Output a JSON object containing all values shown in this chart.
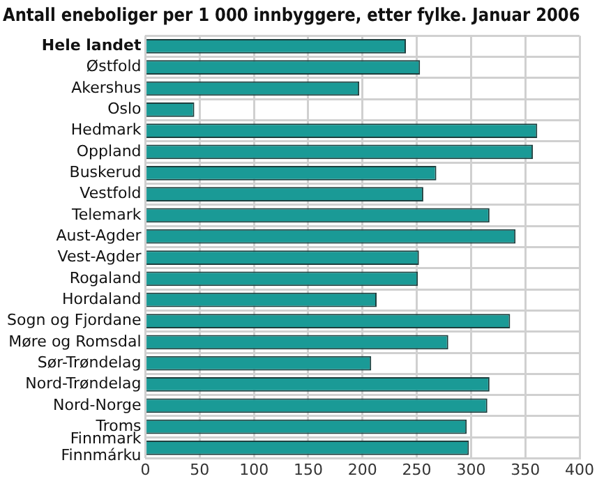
{
  "chart_data": {
    "type": "bar",
    "orientation": "horizontal",
    "title": "Antall eneboliger per 1 000 innbyggere, etter fylke. Januar 2006",
    "categories": [
      "Hele landet",
      "Østfold",
      "Akershus",
      "Oslo",
      "Hedmark",
      "Oppland",
      "Buskerud",
      "Vestfold",
      "Telemark",
      "Aust-Agder",
      "Vest-Agder",
      "Rogaland",
      "Hordaland",
      "Sogn og Fjordane",
      "Møre og Romsdal",
      "Sør-Trøndelag",
      "Nord-Trøndelag",
      "Nord-Norge",
      "Troms",
      "Finnmark\nFinnmárku"
    ],
    "values": [
      240,
      253,
      197,
      45,
      361,
      357,
      268,
      256,
      317,
      341,
      252,
      251,
      213,
      336,
      279,
      208,
      317,
      315,
      296,
      298
    ],
    "color": "#1a9a96",
    "xlim": [
      0,
      400
    ],
    "xticks": [
      0,
      50,
      100,
      150,
      200,
      250,
      300,
      350,
      400
    ],
    "grid": true
  }
}
